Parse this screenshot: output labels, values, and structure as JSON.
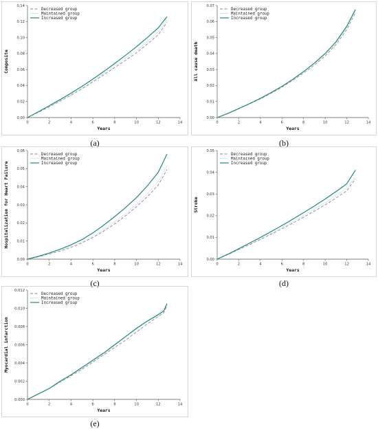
{
  "legend": [
    "Decreased group",
    "Maintained group",
    "Increased group"
  ],
  "colors": {
    "decreased": "#a07a94",
    "maintained": "#a3d3e3",
    "increased": "#1e8a7a",
    "axis": "#555555",
    "border": "#bbbbbb"
  },
  "chart_data": [
    {
      "type": "line",
      "caption": "(a)",
      "xlabel": "Years",
      "ylabel": "Composite",
      "xlim": [
        0,
        14
      ],
      "ylim": [
        0,
        0.14
      ],
      "xticks": [
        "0",
        "2",
        "4",
        "6",
        "8",
        "10",
        "12",
        "14"
      ],
      "yticks": [
        "0.00",
        "0.02",
        "0.04",
        "0.06",
        "0.08",
        "0.10",
        "0.12",
        "0.14"
      ],
      "x": [
        0,
        1,
        2,
        3,
        4,
        5,
        6,
        7,
        8,
        9,
        10,
        11,
        12,
        12.8
      ],
      "series": [
        {
          "name": "Decreased group",
          "values": [
            0,
            0.0065,
            0.0135,
            0.0205,
            0.028,
            0.036,
            0.0445,
            0.0535,
            0.0625,
            0.0715,
            0.081,
            0.092,
            0.1035,
            0.119
          ]
        },
        {
          "name": "Maintained group",
          "values": [
            0,
            0.0068,
            0.014,
            0.0212,
            0.0288,
            0.037,
            0.0457,
            0.055,
            0.0645,
            0.074,
            0.0838,
            0.095,
            0.107,
            0.122
          ]
        },
        {
          "name": "Increased group",
          "values": [
            0,
            0.0072,
            0.0148,
            0.0225,
            0.0305,
            0.039,
            0.048,
            0.0575,
            0.0675,
            0.0778,
            0.0885,
            0.1,
            0.112,
            0.126
          ]
        }
      ]
    },
    {
      "type": "line",
      "caption": "(b)",
      "xlabel": "Years",
      "ylabel": "All cause death",
      "xlim": [
        0,
        14
      ],
      "ylim": [
        0,
        0.07
      ],
      "xticks": [
        "0",
        "2",
        "4",
        "6",
        "8",
        "10",
        "12",
        "14"
      ],
      "yticks": [
        "0.00",
        "0.01",
        "0.02",
        "0.03",
        "0.04",
        "0.05",
        "0.06",
        "0.07"
      ],
      "x": [
        0,
        1,
        2,
        3,
        4,
        5,
        6,
        7,
        8,
        9,
        10,
        11,
        12,
        12.8
      ],
      "series": [
        {
          "name": "Decreased group",
          "values": [
            0,
            0.0025,
            0.0055,
            0.0085,
            0.0117,
            0.0152,
            0.019,
            0.0232,
            0.0278,
            0.0328,
            0.0385,
            0.0455,
            0.055,
            0.0655
          ]
        },
        {
          "name": "Maintained group",
          "values": [
            0,
            0.0026,
            0.0057,
            0.0088,
            0.0121,
            0.0157,
            0.0196,
            0.0239,
            0.0286,
            0.0337,
            0.0395,
            0.0466,
            0.0562,
            0.0668
          ]
        },
        {
          "name": "Increased group",
          "values": [
            0,
            0.0026,
            0.0056,
            0.0087,
            0.012,
            0.0156,
            0.0195,
            0.0239,
            0.0287,
            0.034,
            0.04,
            0.0473,
            0.057,
            0.0675
          ]
        }
      ]
    },
    {
      "type": "line",
      "caption": "(c)",
      "xlabel": "Years",
      "ylabel": "Hospitalization for Heart Failure",
      "xlim": [
        0,
        14
      ],
      "ylim": [
        0,
        0.06
      ],
      "xticks": [
        "0",
        "2",
        "4",
        "6",
        "8",
        "10",
        "12",
        "14"
      ],
      "yticks": [
        "0.00",
        "0.01",
        "0.02",
        "0.03",
        "0.04",
        "0.05",
        "0.06"
      ],
      "x": [
        0,
        1,
        2,
        3,
        4,
        5,
        6,
        7,
        8,
        9,
        10,
        11,
        12,
        12.8
      ],
      "series": [
        {
          "name": "Decreased group",
          "values": [
            0,
            0.0013,
            0.0028,
            0.0045,
            0.0065,
            0.009,
            0.012,
            0.0155,
            0.0195,
            0.024,
            0.029,
            0.0345,
            0.041,
            0.0495
          ]
        },
        {
          "name": "Maintained group",
          "values": [
            0,
            0.0014,
            0.003,
            0.0048,
            0.0069,
            0.0095,
            0.0127,
            0.0164,
            0.0206,
            0.0252,
            0.0303,
            0.0362,
            0.043,
            0.0515
          ]
        },
        {
          "name": "Increased group",
          "values": [
            0,
            0.0016,
            0.0034,
            0.0055,
            0.0079,
            0.0108,
            0.0145,
            0.0188,
            0.0235,
            0.0285,
            0.034,
            0.0405,
            0.048,
            0.058
          ]
        }
      ]
    },
    {
      "type": "line",
      "caption": "(d)",
      "xlabel": "Years",
      "ylabel": "Stroke",
      "xlim": [
        0,
        14
      ],
      "ylim": [
        0,
        0.05
      ],
      "xticks": [
        "0",
        "2",
        "4",
        "6",
        "8",
        "10",
        "12",
        "14"
      ],
      "yticks": [
        "0.00",
        "0.01",
        "0.02",
        "0.03",
        "0.04",
        "0.05"
      ],
      "x": [
        0,
        1,
        2,
        3,
        4,
        5,
        6,
        7,
        8,
        9,
        10,
        11,
        12,
        12.8
      ],
      "series": [
        {
          "name": "Decreased group",
          "values": [
            0,
            0.0021,
            0.0044,
            0.0067,
            0.0091,
            0.0115,
            0.014,
            0.0166,
            0.0193,
            0.0221,
            0.025,
            0.0281,
            0.0315,
            0.037
          ]
        },
        {
          "name": "Maintained group",
          "values": [
            0,
            0.0022,
            0.0046,
            0.007,
            0.0095,
            0.012,
            0.0146,
            0.0173,
            0.0201,
            0.023,
            0.026,
            0.0292,
            0.0327,
            0.038
          ]
        },
        {
          "name": "Increased group",
          "values": [
            0,
            0.0023,
            0.0048,
            0.0074,
            0.01,
            0.0127,
            0.0155,
            0.0184,
            0.0214,
            0.0245,
            0.0277,
            0.0311,
            0.0347,
            0.041
          ]
        }
      ]
    },
    {
      "type": "line",
      "caption": "(e)",
      "xlabel": "Years",
      "ylabel": "Myocardial infarction",
      "xlim": [
        0,
        14
      ],
      "ylim": [
        0,
        0.012
      ],
      "xticks": [
        "0",
        "2",
        "4",
        "6",
        "8",
        "10",
        "12",
        "14"
      ],
      "yticks": [
        "0.000",
        "0.002",
        "0.004",
        "0.006",
        "0.008",
        "0.010",
        "0.012"
      ],
      "x": [
        0,
        1,
        2,
        3,
        4,
        5,
        6,
        7,
        8,
        9,
        10,
        11,
        12,
        12.5,
        12.8
      ],
      "series": [
        {
          "name": "Decreased group",
          "values": [
            0,
            0.0006,
            0.0012,
            0.0019,
            0.0026,
            0.0033,
            0.0041,
            0.0049,
            0.0057,
            0.0065,
            0.0074,
            0.0083,
            0.0091,
            0.0095,
            0.0103
          ]
        },
        {
          "name": "Maintained group",
          "values": [
            0,
            0.0006,
            0.0012,
            0.0019,
            0.0027,
            0.0034,
            0.0042,
            0.005,
            0.0059,
            0.0068,
            0.0077,
            0.0086,
            0.0094,
            0.0098,
            0.0106
          ]
        },
        {
          "name": "Increased group",
          "values": [
            0,
            0.0006,
            0.0012,
            0.002,
            0.0027,
            0.0035,
            0.0043,
            0.0051,
            0.006,
            0.0069,
            0.0078,
            0.0086,
            0.0093,
            0.0097,
            0.0105
          ]
        }
      ]
    }
  ]
}
